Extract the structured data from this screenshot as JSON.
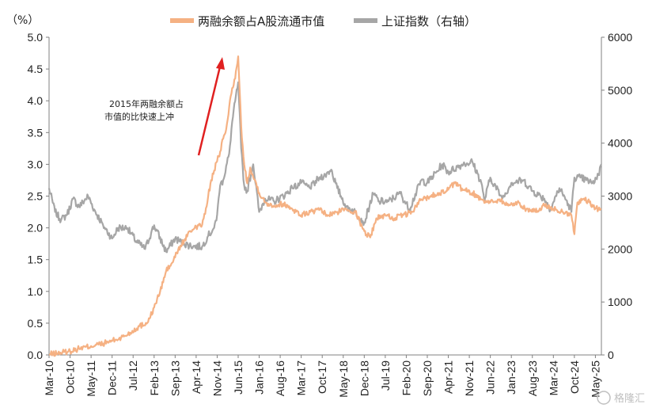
{
  "chart_data": {
    "type": "line",
    "unit_label": "（%）",
    "annotation": [
      "2015年两融余额占",
      "市值的比快速上冲"
    ],
    "watermark": "格隆汇",
    "colors": {
      "margin": "#F5B183",
      "index": "#A6A6A6",
      "arrow": "#E02020",
      "axis": "#808080"
    },
    "y_left": {
      "min": 0,
      "max": 5,
      "ticks": [
        "0.0",
        "0.5",
        "1.0",
        "1.5",
        "2.0",
        "2.5",
        "3.0",
        "3.5",
        "4.0",
        "4.5",
        "5.0"
      ]
    },
    "y_right": {
      "min": 0,
      "max": 6000,
      "ticks": [
        "0",
        "1000",
        "2000",
        "3000",
        "4000",
        "5000",
        "6000"
      ]
    },
    "x_range": [
      "2010-03",
      "2025-07"
    ],
    "x_ticks": [
      "Mar-10",
      "Oct-10",
      "May-11",
      "Dec-11",
      "Jul-12",
      "Feb-13",
      "Sep-13",
      "Apr-14",
      "Nov-14",
      "Jun-15",
      "Jan-16",
      "Aug-16",
      "Mar-17",
      "Oct-17",
      "May-18",
      "Dec-18",
      "Jul-19",
      "Feb-20",
      "Sep-20",
      "Apr-21",
      "Nov-21",
      "Jun-22",
      "Jan-23",
      "Aug-23",
      "Mar-24",
      "Oct-24",
      "May-25"
    ],
    "series": [
      {
        "name": "两融余额占A股流通市值",
        "axis": "left",
        "points": [
          [
            "2010-03",
            0.01
          ],
          [
            "2010-06",
            0.03
          ],
          [
            "2010-10",
            0.06
          ],
          [
            "2011-01",
            0.1
          ],
          [
            "2011-05",
            0.14
          ],
          [
            "2011-09",
            0.18
          ],
          [
            "2011-12",
            0.22
          ],
          [
            "2012-03",
            0.27
          ],
          [
            "2012-06",
            0.35
          ],
          [
            "2012-09",
            0.45
          ],
          [
            "2012-12",
            0.52
          ],
          [
            "2013-02",
            0.75
          ],
          [
            "2013-04",
            1.0
          ],
          [
            "2013-06",
            1.32
          ],
          [
            "2013-08",
            1.45
          ],
          [
            "2013-10",
            1.65
          ],
          [
            "2013-12",
            1.8
          ],
          [
            "2014-02",
            1.95
          ],
          [
            "2014-04",
            2.02
          ],
          [
            "2014-06",
            2.05
          ],
          [
            "2014-07",
            2.22
          ],
          [
            "2014-08",
            2.5
          ],
          [
            "2014-09",
            2.75
          ],
          [
            "2014-10",
            2.9
          ],
          [
            "2014-11",
            3.05
          ],
          [
            "2014-12",
            3.2
          ],
          [
            "2015-01",
            3.4
          ],
          [
            "2015-02",
            3.55
          ],
          [
            "2015-03",
            3.9
          ],
          [
            "2015-04",
            4.2
          ],
          [
            "2015-05",
            4.35
          ],
          [
            "2015-06",
            4.7
          ],
          [
            "2015-07",
            3.6
          ],
          [
            "2015-08",
            3.0
          ],
          [
            "2015-09",
            2.7
          ],
          [
            "2015-10",
            2.95
          ],
          [
            "2015-11",
            2.8
          ],
          [
            "2015-12",
            2.7
          ],
          [
            "2016-01",
            2.55
          ],
          [
            "2016-03",
            2.4
          ],
          [
            "2016-06",
            2.35
          ],
          [
            "2016-09",
            2.38
          ],
          [
            "2016-12",
            2.3
          ],
          [
            "2017-03",
            2.2
          ],
          [
            "2017-06",
            2.25
          ],
          [
            "2017-09",
            2.28
          ],
          [
            "2017-12",
            2.2
          ],
          [
            "2018-03",
            2.25
          ],
          [
            "2018-06",
            2.3
          ],
          [
            "2018-09",
            2.25
          ],
          [
            "2018-12",
            1.95
          ],
          [
            "2019-02",
            1.85
          ],
          [
            "2019-04",
            2.15
          ],
          [
            "2019-07",
            2.2
          ],
          [
            "2019-10",
            2.15
          ],
          [
            "2020-01",
            2.2
          ],
          [
            "2020-04",
            2.25
          ],
          [
            "2020-07",
            2.45
          ],
          [
            "2020-10",
            2.5
          ],
          [
            "2021-01",
            2.55
          ],
          [
            "2021-04",
            2.6
          ],
          [
            "2021-06",
            2.7
          ],
          [
            "2021-09",
            2.6
          ],
          [
            "2021-12",
            2.55
          ],
          [
            "2022-03",
            2.45
          ],
          [
            "2022-06",
            2.4
          ],
          [
            "2022-09",
            2.45
          ],
          [
            "2022-12",
            2.35
          ],
          [
            "2023-03",
            2.4
          ],
          [
            "2023-06",
            2.3
          ],
          [
            "2023-09",
            2.25
          ],
          [
            "2023-12",
            2.35
          ],
          [
            "2024-03",
            2.3
          ],
          [
            "2024-06",
            2.25
          ],
          [
            "2024-09",
            2.2
          ],
          [
            "2024-10",
            1.9
          ],
          [
            "2024-11",
            2.4
          ],
          [
            "2025-01",
            2.45
          ],
          [
            "2025-03",
            2.4
          ],
          [
            "2025-05",
            2.3
          ],
          [
            "2025-07",
            2.3
          ]
        ]
      },
      {
        "name": "上证指数（右轴）",
        "axis": "right",
        "points": [
          [
            "2010-03",
            3150
          ],
          [
            "2010-05",
            2700
          ],
          [
            "2010-07",
            2550
          ],
          [
            "2010-09",
            2650
          ],
          [
            "2010-11",
            2950
          ],
          [
            "2011-01",
            2800
          ],
          [
            "2011-04",
            3000
          ],
          [
            "2011-06",
            2750
          ],
          [
            "2011-09",
            2450
          ],
          [
            "2011-12",
            2200
          ],
          [
            "2012-02",
            2400
          ],
          [
            "2012-05",
            2400
          ],
          [
            "2012-08",
            2150
          ],
          [
            "2012-11",
            2000
          ],
          [
            "2013-01",
            2300
          ],
          [
            "2013-02",
            2450
          ],
          [
            "2013-06",
            1950
          ],
          [
            "2013-09",
            2200
          ],
          [
            "2013-12",
            2100
          ],
          [
            "2014-03",
            2050
          ],
          [
            "2014-06",
            2050
          ],
          [
            "2014-08",
            2250
          ],
          [
            "2014-10",
            2400
          ],
          [
            "2014-11",
            2650
          ],
          [
            "2014-12",
            3200
          ],
          [
            "2015-01",
            3300
          ],
          [
            "2015-03",
            3800
          ],
          [
            "2015-04",
            4400
          ],
          [
            "2015-06",
            5150
          ],
          [
            "2015-07",
            3900
          ],
          [
            "2015-08",
            3200
          ],
          [
            "2015-09",
            3100
          ],
          [
            "2015-11",
            3600
          ],
          [
            "2016-01",
            2700
          ],
          [
            "2016-03",
            2950
          ],
          [
            "2016-06",
            2900
          ],
          [
            "2016-09",
            3000
          ],
          [
            "2016-12",
            3150
          ],
          [
            "2017-03",
            3250
          ],
          [
            "2017-06",
            3150
          ],
          [
            "2017-09",
            3350
          ],
          [
            "2017-11",
            3400
          ],
          [
            "2018-01",
            3500
          ],
          [
            "2018-03",
            3150
          ],
          [
            "2018-06",
            2800
          ],
          [
            "2018-09",
            2700
          ],
          [
            "2018-12",
            2500
          ],
          [
            "2019-03",
            3050
          ],
          [
            "2019-05",
            2900
          ],
          [
            "2019-08",
            2900
          ],
          [
            "2019-12",
            3050
          ],
          [
            "2020-03",
            2750
          ],
          [
            "2020-07",
            3300
          ],
          [
            "2020-09",
            3250
          ],
          [
            "2020-12",
            3450
          ],
          [
            "2021-02",
            3600
          ],
          [
            "2021-04",
            3450
          ],
          [
            "2021-07",
            3550
          ],
          [
            "2021-09",
            3600
          ],
          [
            "2021-12",
            3650
          ],
          [
            "2022-03",
            3250
          ],
          [
            "2022-04",
            2900
          ],
          [
            "2022-06",
            3350
          ],
          [
            "2022-10",
            2950
          ],
          [
            "2023-01",
            3250
          ],
          [
            "2023-05",
            3300
          ],
          [
            "2023-08",
            3100
          ],
          [
            "2023-12",
            2950
          ],
          [
            "2024-02",
            2750
          ],
          [
            "2024-05",
            3150
          ],
          [
            "2024-08",
            2850
          ],
          [
            "2024-09",
            2700
          ],
          [
            "2024-10",
            3350
          ],
          [
            "2024-12",
            3350
          ],
          [
            "2025-02",
            3300
          ],
          [
            "2025-04",
            3250
          ],
          [
            "2025-06",
            3400
          ],
          [
            "2025-07",
            3600
          ]
        ]
      }
    ]
  }
}
